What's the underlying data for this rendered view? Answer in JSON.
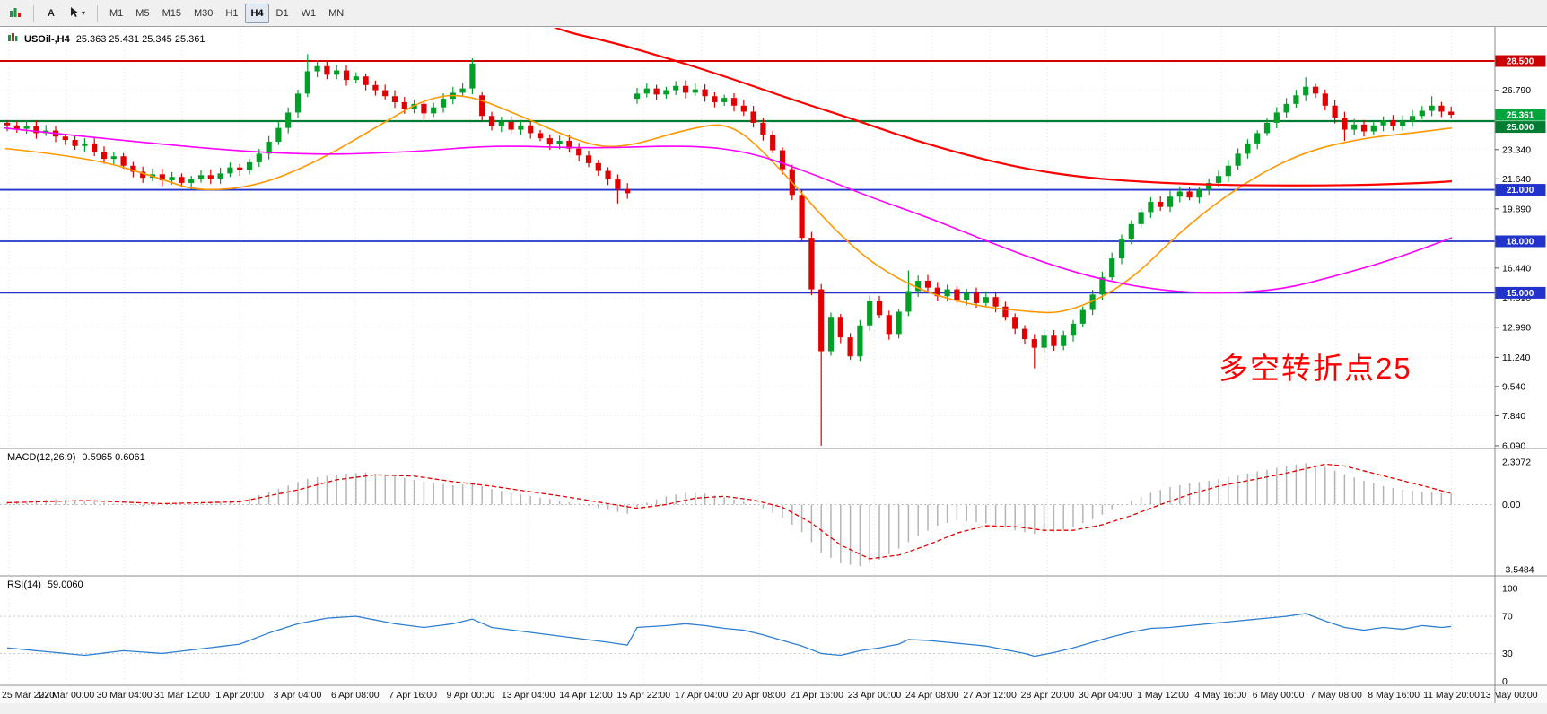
{
  "toolbar": {
    "timeframes": [
      "M1",
      "M5",
      "M15",
      "M30",
      "H1",
      "H4",
      "D1",
      "W1",
      "MN"
    ],
    "active_timeframe": "H4",
    "text_tool_label": "A"
  },
  "header": {
    "symbol": "USOil-,H4",
    "ohlc": "25.363 25.431 25.345 25.361"
  },
  "annotation": {
    "text": "多空转折点25",
    "color": "#ff0000"
  },
  "price_axis": {
    "ticks": [
      {
        "label": "26.790",
        "price": 26.79
      },
      {
        "label": "23.340",
        "price": 23.34
      },
      {
        "label": "21.640",
        "price": 21.64
      },
      {
        "label": "19.890",
        "price": 19.89
      },
      {
        "label": "18.140",
        "price": 18.14
      },
      {
        "label": "16.440",
        "price": 16.44
      },
      {
        "label": "14.690",
        "price": 14.69
      },
      {
        "label": "12.990",
        "price": 12.99
      },
      {
        "label": "11.240",
        "price": 11.24
      },
      {
        "label": "9.540",
        "price": 9.54
      },
      {
        "label": "7.840",
        "price": 7.84
      },
      {
        "label": "6.090",
        "price": 6.09
      }
    ],
    "badges": [
      {
        "label": "28.500",
        "price": 28.5,
        "color": "#cc0000"
      },
      {
        "label": "25.361",
        "price": 25.361,
        "color": "#00a53b"
      },
      {
        "label": "25.000",
        "price": 25.0,
        "color": "#007d32"
      },
      {
        "label": "21.000",
        "price": 21.0,
        "color": "#2233cc"
      },
      {
        "label": "18.000",
        "price": 18.0,
        "color": "#2233cc"
      },
      {
        "label": "15.000",
        "price": 15.0,
        "color": "#2233cc"
      }
    ]
  },
  "time_axis": {
    "labels": [
      "25 Mar 2020",
      "27 Mar 00:00",
      "30 Mar 04:00",
      "31 Mar 12:00",
      "1 Apr 20:00",
      "3 Apr 04:00",
      "6 Apr 08:00",
      "7 Apr 16:00",
      "9 Apr 00:00",
      "13 Apr 04:00",
      "14 Apr 12:00",
      "15 Apr 22:00",
      "17 Apr 04:00",
      "20 Apr 08:00",
      "21 Apr 16:00",
      "23 Apr 00:00",
      "24 Apr 08:00",
      "27 Apr 12:00",
      "28 Apr 20:00",
      "30 Apr 04:00",
      "1 May 12:00",
      "4 May 16:00",
      "6 May 00:00",
      "7 May 08:00",
      "8 May 16:00",
      "11 May 20:00",
      "13 May 00:00"
    ]
  },
  "levels": [
    {
      "price": 28.5,
      "color": "#d40000",
      "width": 2
    },
    {
      "price": 25.0,
      "color": "#007d32",
      "width": 2.2
    },
    {
      "price": 21.0,
      "color": "#2233cc",
      "width": 1.8
    },
    {
      "price": 18.0,
      "color": "#2233cc",
      "width": 1.8
    },
    {
      "price": 15.0,
      "color": "#2233cc",
      "width": 1.8
    }
  ],
  "chart_data": {
    "type": "candlestick",
    "symbol": "USOil-",
    "timeframe": "H4",
    "up_color": "#00a028",
    "down_color": "#e00000",
    "open_first": 24.9,
    "closes": [
      24.75,
      24.55,
      24.7,
      24.3,
      24.45,
      24.1,
      23.9,
      23.55,
      23.7,
      23.2,
      22.8,
      22.95,
      22.4,
      22.05,
      21.7,
      21.9,
      21.55,
      21.75,
      21.4,
      21.6,
      21.85,
      21.65,
      21.95,
      22.3,
      22.15,
      22.6,
      23.1,
      23.8,
      24.6,
      25.5,
      26.6,
      27.9,
      28.2,
      27.7,
      27.95,
      27.4,
      27.6,
      27.1,
      26.8,
      26.45,
      26.1,
      25.7,
      26.0,
      25.45,
      25.8,
      26.3,
      26.65,
      26.9,
      28.35,
      25.3,
      24.7,
      24.95,
      24.5,
      24.75,
      24.3,
      24.0,
      23.65,
      23.85,
      23.4,
      23.0,
      22.55,
      22.1,
      21.6,
      21.05,
      20.8,
      26.6,
      26.9,
      26.55,
      26.8,
      27.05,
      26.65,
      26.85,
      26.45,
      26.1,
      26.35,
      25.9,
      25.55,
      24.9,
      24.2,
      23.3,
      22.2,
      20.7,
      18.2,
      15.2,
      11.6,
      13.6,
      12.4,
      11.3,
      13.1,
      14.5,
      13.7,
      12.6,
      13.9,
      15.1,
      15.7,
      15.3,
      14.8,
      15.2,
      14.6,
      15.0,
      14.4,
      14.75,
      14.2,
      13.6,
      12.9,
      12.3,
      11.8,
      12.5,
      11.9,
      12.5,
      13.2,
      14.0,
      14.9,
      15.9,
      17.0,
      18.1,
      19.0,
      19.7,
      20.3,
      20.0,
      20.6,
      20.9,
      20.55,
      21.0,
      21.4,
      21.8,
      22.4,
      23.1,
      23.7,
      24.3,
      24.9,
      25.5,
      26.0,
      26.5,
      27.0,
      26.6,
      25.9,
      25.2,
      24.5,
      24.8,
      24.4,
      24.75,
      25.05,
      24.7,
      25.0,
      25.3,
      25.6,
      25.9,
      25.55,
      25.36
    ],
    "open_overrides": {
      "49": 26.5,
      "65": 26.3
    },
    "wick_overrides": {
      "31": [
        28.9,
        null
      ],
      "32": [
        28.55,
        null
      ],
      "48": [
        28.65,
        null
      ],
      "63": [
        null,
        20.2
      ],
      "84": [
        null,
        6.09
      ],
      "93": [
        16.3,
        null
      ],
      "106": [
        null,
        10.6
      ],
      "134": [
        27.55,
        null
      ],
      "138": [
        null,
        23.85
      ],
      "147": [
        26.45,
        null
      ]
    },
    "moving_averages": [
      {
        "name": "fast-orange",
        "color": "#ff9800",
        "width": 1.6,
        "points": [
          [
            6,
            23.4
          ],
          [
            99,
            22.9
          ],
          [
            176,
            21.7
          ],
          [
            220,
            20.9
          ],
          [
            286,
            21.2
          ],
          [
            352,
            22.6
          ],
          [
            418,
            24.6
          ],
          [
            473,
            26.3
          ],
          [
            517,
            26.6
          ],
          [
            572,
            25.5
          ],
          [
            649,
            23.7
          ],
          [
            693,
            23.4
          ],
          [
            770,
            24.6
          ],
          [
            814,
            24.9
          ],
          [
            858,
            22.9
          ],
          [
            946,
            17.7
          ],
          [
            1012,
            15.4
          ],
          [
            1078,
            14.3
          ],
          [
            1144,
            13.9
          ],
          [
            1188,
            13.8
          ],
          [
            1254,
            15.4
          ],
          [
            1320,
            18.8
          ],
          [
            1386,
            21.4
          ],
          [
            1452,
            23.2
          ],
          [
            1518,
            24.0
          ],
          [
            1572,
            24.3
          ],
          [
            1618,
            24.6
          ]
        ]
      },
      {
        "name": "medium-magenta",
        "color": "#ff00ff",
        "width": 1.6,
        "points": [
          [
            5,
            24.6
          ],
          [
            165,
            23.7
          ],
          [
            330,
            23.0
          ],
          [
            462,
            23.2
          ],
          [
            550,
            23.6
          ],
          [
            660,
            23.4
          ],
          [
            770,
            23.6
          ],
          [
            836,
            23.2
          ],
          [
            902,
            22.0
          ],
          [
            968,
            20.6
          ],
          [
            1034,
            19.4
          ],
          [
            1100,
            18.0
          ],
          [
            1166,
            16.7
          ],
          [
            1232,
            15.7
          ],
          [
            1298,
            15.1
          ],
          [
            1364,
            14.95
          ],
          [
            1430,
            15.2
          ],
          [
            1490,
            16.0
          ],
          [
            1550,
            16.9
          ],
          [
            1618,
            18.2
          ]
        ]
      },
      {
        "name": "slow-red",
        "color": "#ff0000",
        "width": 2.2,
        "points": [
          [
            600,
            30.9
          ],
          [
            621,
            30.3
          ],
          [
            682,
            29.6
          ],
          [
            748,
            28.6
          ],
          [
            814,
            27.5
          ],
          [
            880,
            26.3
          ],
          [
            946,
            25.2
          ],
          [
            1012,
            24.0
          ],
          [
            1078,
            23.0
          ],
          [
            1144,
            22.2
          ],
          [
            1210,
            21.7
          ],
          [
            1276,
            21.45
          ],
          [
            1342,
            21.3
          ],
          [
            1408,
            21.25
          ],
          [
            1474,
            21.25
          ],
          [
            1540,
            21.3
          ],
          [
            1606,
            21.45
          ],
          [
            1618,
            21.5
          ]
        ]
      }
    ],
    "macd": {
      "label": "MACD(12,26,9)",
      "values": "0.5965 0.6061",
      "hist_color": "#b4b4b4",
      "signal_color": "#e00000",
      "axis": [
        {
          "label": "2.3072",
          "value": 2.3072
        },
        {
          "label": "0.00",
          "value": 0
        },
        {
          "label": "-3.5484",
          "value": -3.5484
        }
      ],
      "histogram": [
        [
          0,
          0.15
        ],
        [
          5,
          0.3
        ],
        [
          10,
          0.1
        ],
        [
          14,
          -0.1
        ],
        [
          18,
          0.0
        ],
        [
          22,
          0.15
        ],
        [
          25,
          0.35
        ],
        [
          28,
          0.85
        ],
        [
          31,
          1.4
        ],
        [
          34,
          1.65
        ],
        [
          37,
          1.75
        ],
        [
          40,
          1.55
        ],
        [
          43,
          1.25
        ],
        [
          46,
          1.05
        ],
        [
          48,
          1.15
        ],
        [
          50,
          0.85
        ],
        [
          53,
          0.55
        ],
        [
          56,
          0.3
        ],
        [
          59,
          0.05
        ],
        [
          62,
          -0.3
        ],
        [
          64,
          -0.5
        ],
        [
          66,
          0.1
        ],
        [
          68,
          0.45
        ],
        [
          70,
          0.65
        ],
        [
          72,
          0.6
        ],
        [
          74,
          0.4
        ],
        [
          76,
          0.15
        ],
        [
          78,
          -0.2
        ],
        [
          80,
          -0.7
        ],
        [
          82,
          -1.5
        ],
        [
          84,
          -2.6
        ],
        [
          86,
          -3.2
        ],
        [
          88,
          -3.35
        ],
        [
          90,
          -3.0
        ],
        [
          92,
          -2.4
        ],
        [
          94,
          -1.7
        ],
        [
          96,
          -1.15
        ],
        [
          98,
          -0.85
        ],
        [
          100,
          -0.95
        ],
        [
          102,
          -1.1
        ],
        [
          104,
          -1.4
        ],
        [
          106,
          -1.6
        ],
        [
          108,
          -1.5
        ],
        [
          110,
          -1.2
        ],
        [
          112,
          -0.8
        ],
        [
          114,
          -0.3
        ],
        [
          116,
          0.2
        ],
        [
          118,
          0.65
        ],
        [
          120,
          0.95
        ],
        [
          122,
          1.15
        ],
        [
          124,
          1.3
        ],
        [
          126,
          1.5
        ],
        [
          128,
          1.7
        ],
        [
          130,
          1.9
        ],
        [
          132,
          2.1
        ],
        [
          134,
          2.25
        ],
        [
          136,
          2.05
        ],
        [
          138,
          1.65
        ],
        [
          140,
          1.3
        ],
        [
          142,
          1.0
        ],
        [
          144,
          0.8
        ],
        [
          146,
          0.7
        ],
        [
          148,
          0.62
        ],
        [
          149,
          0.6
        ]
      ],
      "signal": [
        [
          0,
          0.1
        ],
        [
          8,
          0.22
        ],
        [
          16,
          0.05
        ],
        [
          24,
          0.15
        ],
        [
          30,
          0.8
        ],
        [
          34,
          1.35
        ],
        [
          38,
          1.62
        ],
        [
          42,
          1.55
        ],
        [
          46,
          1.25
        ],
        [
          50,
          1.0
        ],
        [
          54,
          0.7
        ],
        [
          58,
          0.4
        ],
        [
          62,
          0.05
        ],
        [
          65,
          -0.2
        ],
        [
          68,
          0.0
        ],
        [
          71,
          0.35
        ],
        [
          74,
          0.45
        ],
        [
          77,
          0.25
        ],
        [
          80,
          -0.15
        ],
        [
          83,
          -1.0
        ],
        [
          86,
          -2.2
        ],
        [
          89,
          -2.95
        ],
        [
          92,
          -2.75
        ],
        [
          95,
          -2.2
        ],
        [
          98,
          -1.55
        ],
        [
          101,
          -1.15
        ],
        [
          104,
          -1.2
        ],
        [
          107,
          -1.4
        ],
        [
          110,
          -1.4
        ],
        [
          113,
          -1.1
        ],
        [
          116,
          -0.6
        ],
        [
          119,
          0.0
        ],
        [
          122,
          0.55
        ],
        [
          125,
          1.0
        ],
        [
          128,
          1.3
        ],
        [
          131,
          1.6
        ],
        [
          134,
          1.95
        ],
        [
          136,
          2.2
        ],
        [
          138,
          2.1
        ],
        [
          141,
          1.7
        ],
        [
          144,
          1.3
        ],
        [
          147,
          0.9
        ],
        [
          149,
          0.61
        ]
      ]
    },
    "rsi": {
      "label": "RSI(14)",
      "value": "59.0060",
      "color": "#2f7fd0",
      "levels": [
        70,
        30
      ],
      "axis": [
        {
          "label": "100",
          "value": 100
        },
        {
          "label": "70",
          "value": 70
        },
        {
          "label": "30",
          "value": 30
        },
        {
          "label": "0",
          "value": 0
        }
      ],
      "points": [
        [
          0,
          36
        ],
        [
          4,
          32
        ],
        [
          8,
          28
        ],
        [
          12,
          33
        ],
        [
          16,
          30
        ],
        [
          20,
          35
        ],
        [
          24,
          40
        ],
        [
          27,
          52
        ],
        [
          30,
          62
        ],
        [
          33,
          68
        ],
        [
          36,
          70
        ],
        [
          38,
          66
        ],
        [
          40,
          62
        ],
        [
          43,
          58
        ],
        [
          46,
          62
        ],
        [
          48,
          67
        ],
        [
          50,
          58
        ],
        [
          53,
          54
        ],
        [
          56,
          50
        ],
        [
          59,
          46
        ],
        [
          62,
          42
        ],
        [
          64,
          39
        ],
        [
          65,
          58
        ],
        [
          68,
          60
        ],
        [
          70,
          62
        ],
        [
          72,
          60
        ],
        [
          74,
          57
        ],
        [
          76,
          55
        ],
        [
          78,
          50
        ],
        [
          80,
          44
        ],
        [
          82,
          38
        ],
        [
          84,
          30
        ],
        [
          86,
          28
        ],
        [
          88,
          33
        ],
        [
          90,
          36
        ],
        [
          92,
          40
        ],
        [
          93,
          45
        ],
        [
          95,
          44
        ],
        [
          97,
          42
        ],
        [
          99,
          40
        ],
        [
          101,
          38
        ],
        [
          103,
          34
        ],
        [
          105,
          30
        ],
        [
          106,
          27
        ],
        [
          108,
          31
        ],
        [
          110,
          36
        ],
        [
          112,
          42
        ],
        [
          114,
          48
        ],
        [
          116,
          53
        ],
        [
          118,
          57
        ],
        [
          120,
          58
        ],
        [
          122,
          60
        ],
        [
          124,
          62
        ],
        [
          126,
          64
        ],
        [
          128,
          66
        ],
        [
          130,
          68
        ],
        [
          132,
          70
        ],
        [
          134,
          73
        ],
        [
          136,
          65
        ],
        [
          138,
          58
        ],
        [
          140,
          55
        ],
        [
          142,
          58
        ],
        [
          144,
          56
        ],
        [
          146,
          60
        ],
        [
          148,
          58
        ],
        [
          149,
          59
        ]
      ]
    }
  }
}
